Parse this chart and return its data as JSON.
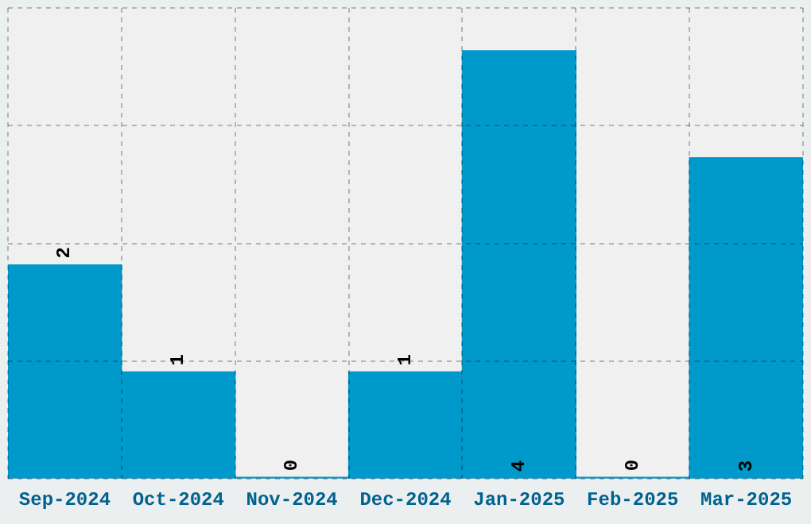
{
  "chart_data": {
    "type": "bar",
    "categories": [
      "Sep-2024",
      "Oct-2024",
      "Nov-2024",
      "Dec-2024",
      "Jan-2025",
      "Feb-2025",
      "Mar-2025"
    ],
    "values": [
      2,
      1,
      0,
      1,
      4,
      0,
      3
    ],
    "color": "#0099cc",
    "ylim": [
      0,
      4.4
    ],
    "yticks": [
      {
        "value": 0,
        "label": null
      },
      {
        "value": 1.1,
        "label": null
      },
      {
        "value": 2.2,
        "label": null
      },
      {
        "value": 3.3,
        "label": null
      },
      {
        "value": 4.4,
        "label": null
      }
    ],
    "tick_labels": "x",
    "grid": true,
    "data_labels": true,
    "legend": false
  }
}
